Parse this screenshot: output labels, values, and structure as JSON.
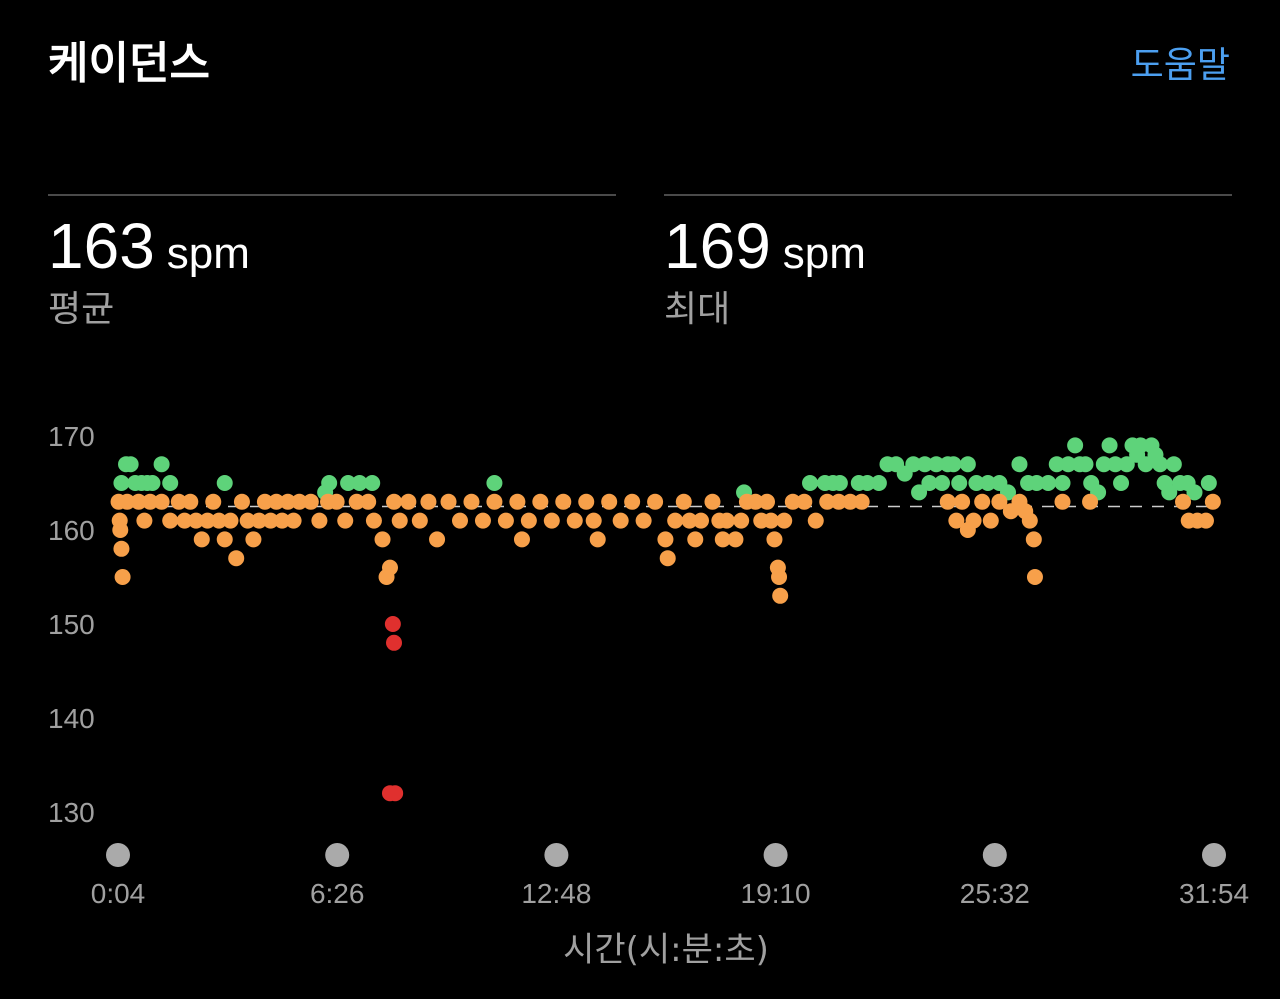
{
  "header": {
    "title": "케이던스",
    "help_label": "도움말"
  },
  "stats": {
    "average": {
      "value": "163",
      "unit": "spm",
      "label": "평균"
    },
    "maximum": {
      "value": "169",
      "unit": "spm",
      "label": "최대"
    }
  },
  "colors": {
    "above_average": "#5ed37a",
    "near_average": "#f7a04a",
    "below_range": "#e0302e",
    "axis_text": "#a0a0a0",
    "x_tick_dot": "#aaaaaa",
    "average_line": "#cccccc",
    "link": "#4c9ff0"
  },
  "chart_data": {
    "type": "scatter",
    "title": "",
    "xlabel": "시간(시:분:초)",
    "ylabel": "",
    "ylim": [
      130,
      170
    ],
    "xlim": [
      4,
      1914
    ],
    "yticks": [
      170,
      160,
      150,
      140,
      130
    ],
    "xticks": [
      {
        "t": 4,
        "label": "0:04"
      },
      {
        "t": 386,
        "label": "6:26"
      },
      {
        "t": 768,
        "label": "12:48"
      },
      {
        "t": 1150,
        "label": "19:10"
      },
      {
        "t": 1532,
        "label": "25:32"
      },
      {
        "t": 1914,
        "label": "31:54"
      }
    ],
    "grid": false,
    "average_line": 162.5,
    "series": [
      {
        "color_key": "above_average",
        "points": [
          [
            10,
            165
          ],
          [
            18,
            167
          ],
          [
            26,
            167
          ],
          [
            34,
            165
          ],
          [
            45,
            165
          ],
          [
            55,
            165
          ],
          [
            64,
            165
          ],
          [
            80,
            167
          ],
          [
            95,
            165
          ],
          [
            190,
            165
          ],
          [
            365,
            164
          ],
          [
            372,
            165
          ],
          [
            405,
            165
          ],
          [
            425,
            165
          ],
          [
            447,
            165
          ],
          [
            660,
            165
          ],
          [
            1095,
            164
          ],
          [
            1210,
            165
          ],
          [
            1236,
            165
          ],
          [
            1250,
            165
          ],
          [
            1262,
            165
          ],
          [
            1295,
            165
          ],
          [
            1310,
            165
          ],
          [
            1330,
            165
          ],
          [
            1345,
            167
          ],
          [
            1360,
            167
          ],
          [
            1375,
            166
          ],
          [
            1390,
            167
          ],
          [
            1400,
            164
          ],
          [
            1410,
            167
          ],
          [
            1418,
            165
          ],
          [
            1430,
            167
          ],
          [
            1440,
            165
          ],
          [
            1450,
            167
          ],
          [
            1460,
            167
          ],
          [
            1470,
            165
          ],
          [
            1485,
            167
          ],
          [
            1500,
            165
          ],
          [
            1520,
            165
          ],
          [
            1540,
            165
          ],
          [
            1555,
            164
          ],
          [
            1575,
            167
          ],
          [
            1590,
            165
          ],
          [
            1605,
            165
          ],
          [
            1625,
            165
          ],
          [
            1640,
            167
          ],
          [
            1650,
            165
          ],
          [
            1660,
            167
          ],
          [
            1672,
            169
          ],
          [
            1680,
            167
          ],
          [
            1690,
            167
          ],
          [
            1700,
            165
          ],
          [
            1712,
            164
          ],
          [
            1722,
            167
          ],
          [
            1732,
            169
          ],
          [
            1742,
            167
          ],
          [
            1752,
            165
          ],
          [
            1762,
            167
          ],
          [
            1772,
            169
          ],
          [
            1780,
            168
          ],
          [
            1786,
            169
          ],
          [
            1795,
            167
          ],
          [
            1805,
            169
          ],
          [
            1812,
            168
          ],
          [
            1820,
            167
          ],
          [
            1828,
            165
          ],
          [
            1836,
            164
          ],
          [
            1844,
            167
          ],
          [
            1855,
            165
          ],
          [
            1868,
            165
          ],
          [
            1880,
            164
          ],
          [
            1905,
            165
          ]
        ]
      },
      {
        "color_key": "near_average",
        "points": [
          [
            5,
            163
          ],
          [
            7,
            161
          ],
          [
            8,
            160
          ],
          [
            10,
            158
          ],
          [
            12,
            155
          ],
          [
            20,
            163
          ],
          [
            40,
            163
          ],
          [
            50,
            161
          ],
          [
            60,
            163
          ],
          [
            80,
            163
          ],
          [
            95,
            161
          ],
          [
            110,
            163
          ],
          [
            120,
            161
          ],
          [
            130,
            163
          ],
          [
            140,
            161
          ],
          [
            150,
            159
          ],
          [
            160,
            161
          ],
          [
            170,
            163
          ],
          [
            180,
            161
          ],
          [
            190,
            159
          ],
          [
            200,
            161
          ],
          [
            210,
            157
          ],
          [
            220,
            163
          ],
          [
            230,
            161
          ],
          [
            240,
            159
          ],
          [
            250,
            161
          ],
          [
            260,
            163
          ],
          [
            270,
            161
          ],
          [
            280,
            163
          ],
          [
            290,
            161
          ],
          [
            300,
            163
          ],
          [
            310,
            161
          ],
          [
            320,
            163
          ],
          [
            340,
            163
          ],
          [
            355,
            161
          ],
          [
            370,
            163
          ],
          [
            385,
            163
          ],
          [
            400,
            161
          ],
          [
            420,
            163
          ],
          [
            440,
            163
          ],
          [
            450,
            161
          ],
          [
            465,
            159
          ],
          [
            472,
            155
          ],
          [
            478,
            156
          ],
          [
            485,
            163
          ],
          [
            495,
            161
          ],
          [
            510,
            163
          ],
          [
            530,
            161
          ],
          [
            545,
            163
          ],
          [
            560,
            159
          ],
          [
            580,
            163
          ],
          [
            600,
            161
          ],
          [
            620,
            163
          ],
          [
            640,
            161
          ],
          [
            660,
            163
          ],
          [
            680,
            161
          ],
          [
            700,
            163
          ],
          [
            708,
            159
          ],
          [
            720,
            161
          ],
          [
            740,
            163
          ],
          [
            760,
            161
          ],
          [
            780,
            163
          ],
          [
            800,
            161
          ],
          [
            820,
            163
          ],
          [
            833,
            161
          ],
          [
            840,
            159
          ],
          [
            860,
            163
          ],
          [
            880,
            161
          ],
          [
            900,
            163
          ],
          [
            920,
            161
          ],
          [
            940,
            163
          ],
          [
            958,
            159
          ],
          [
            962,
            157
          ],
          [
            975,
            161
          ],
          [
            990,
            163
          ],
          [
            1000,
            161
          ],
          [
            1010,
            159
          ],
          [
            1020,
            161
          ],
          [
            1040,
            163
          ],
          [
            1052,
            161
          ],
          [
            1058,
            159
          ],
          [
            1065,
            161
          ],
          [
            1080,
            159
          ],
          [
            1090,
            161
          ],
          [
            1100,
            163
          ],
          [
            1115,
            163
          ],
          [
            1125,
            161
          ],
          [
            1135,
            163
          ],
          [
            1142,
            161
          ],
          [
            1148,
            159
          ],
          [
            1154,
            156
          ],
          [
            1156,
            155
          ],
          [
            1158,
            153
          ],
          [
            1165,
            161
          ],
          [
            1180,
            163
          ],
          [
            1200,
            163
          ],
          [
            1220,
            161
          ],
          [
            1240,
            163
          ],
          [
            1260,
            163
          ],
          [
            1280,
            163
          ],
          [
            1300,
            163
          ],
          [
            1450,
            163
          ],
          [
            1465,
            161
          ],
          [
            1475,
            163
          ],
          [
            1485,
            160
          ],
          [
            1495,
            161
          ],
          [
            1510,
            163
          ],
          [
            1525,
            161
          ],
          [
            1540,
            163
          ],
          [
            1560,
            162
          ],
          [
            1575,
            163
          ],
          [
            1585,
            162
          ],
          [
            1593,
            161
          ],
          [
            1600,
            159
          ],
          [
            1602,
            155
          ],
          [
            1650,
            163
          ],
          [
            1698,
            163
          ],
          [
            1860,
            163
          ],
          [
            1870,
            161
          ],
          [
            1885,
            161
          ],
          [
            1900,
            161
          ],
          [
            1912,
            163
          ]
        ]
      },
      {
        "color_key": "below_range",
        "points": [
          [
            483,
            150
          ],
          [
            485,
            148
          ],
          [
            487,
            132
          ],
          [
            478,
            132
          ]
        ]
      }
    ]
  }
}
